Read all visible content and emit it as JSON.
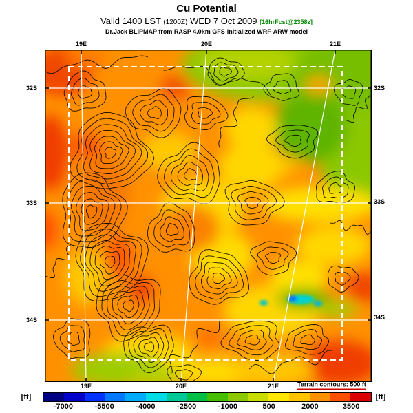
{
  "header": {
    "title": "Cu Potential",
    "valid_prefix": "Valid 1400 LST",
    "valid_z": "(1200Z)",
    "valid_date": "WED 7 Oct 2009",
    "fcst_tag": "[16hrFcst@2358z]",
    "fcst_color": "#008800",
    "model_line": "Dr.Jack BLIPMAP from RASP 4.0km GFS-initialized WRF-ARW model"
  },
  "map": {
    "axes": {
      "top": [
        "19E",
        "20E",
        "21E"
      ],
      "bottom": [
        "19E",
        "20E",
        "21E"
      ],
      "left": [
        "32S",
        "33S",
        "34S"
      ],
      "right": [
        "32S",
        "33S",
        "34S"
      ]
    },
    "terrain_note": "Terrain contours: 500 ft",
    "terrain_note_color": "#D00000"
  },
  "colorbar": {
    "unit_left": "[ft]",
    "unit_right": "[ft]",
    "ticks": [
      "-7000",
      "-5500",
      "-4000",
      "-2500",
      "-1000",
      "500",
      "2000",
      "3500"
    ],
    "colors": [
      "#000082",
      "#0000C8",
      "#0032FF",
      "#0078FF",
      "#00AAFF",
      "#00DCE6",
      "#00C896",
      "#00BE46",
      "#46BE00",
      "#8CC800",
      "#C8DC00",
      "#FFE600",
      "#FFC300",
      "#FF9100",
      "#FF5000",
      "#DC0000"
    ]
  },
  "chart_data": {
    "type": "heatmap",
    "title": "Cu Potential",
    "units": "ft",
    "valid": "1400 LST (1200Z) WED 7 Oct 2009",
    "colorbar_tick_values": [
      -7000,
      -5500,
      -4000,
      -2500,
      -1000,
      500,
      2000,
      3500
    ],
    "colorbar_step": 750,
    "colorbar_range": [
      -7750,
      4250
    ],
    "lon_gridlines": [
      "19E",
      "20E",
      "21E"
    ],
    "lat_gridlines": [
      "32S",
      "33S",
      "34S"
    ],
    "terrain_contour_interval_ft": 500
  }
}
